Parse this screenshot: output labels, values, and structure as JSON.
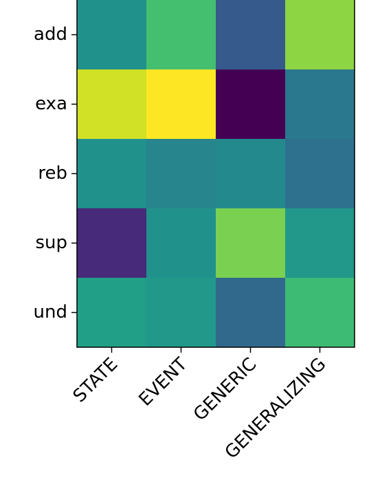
{
  "chart_data": {
    "type": "heatmap",
    "x_categories": [
      "STATE",
      "EVENT",
      "GENERIC",
      "GENERALIZING"
    ],
    "y_categories": [
      "add",
      "exa",
      "reb",
      "sup",
      "und"
    ],
    "values": [
      [
        0.5,
        0.7,
        0.28,
        0.83
      ],
      [
        0.93,
        1.0,
        0.0,
        0.4
      ],
      [
        0.5,
        0.45,
        0.47,
        0.37
      ],
      [
        0.12,
        0.5,
        0.8,
        0.53
      ],
      [
        0.56,
        0.53,
        0.34,
        0.68
      ]
    ],
    "colormap": "viridis"
  }
}
